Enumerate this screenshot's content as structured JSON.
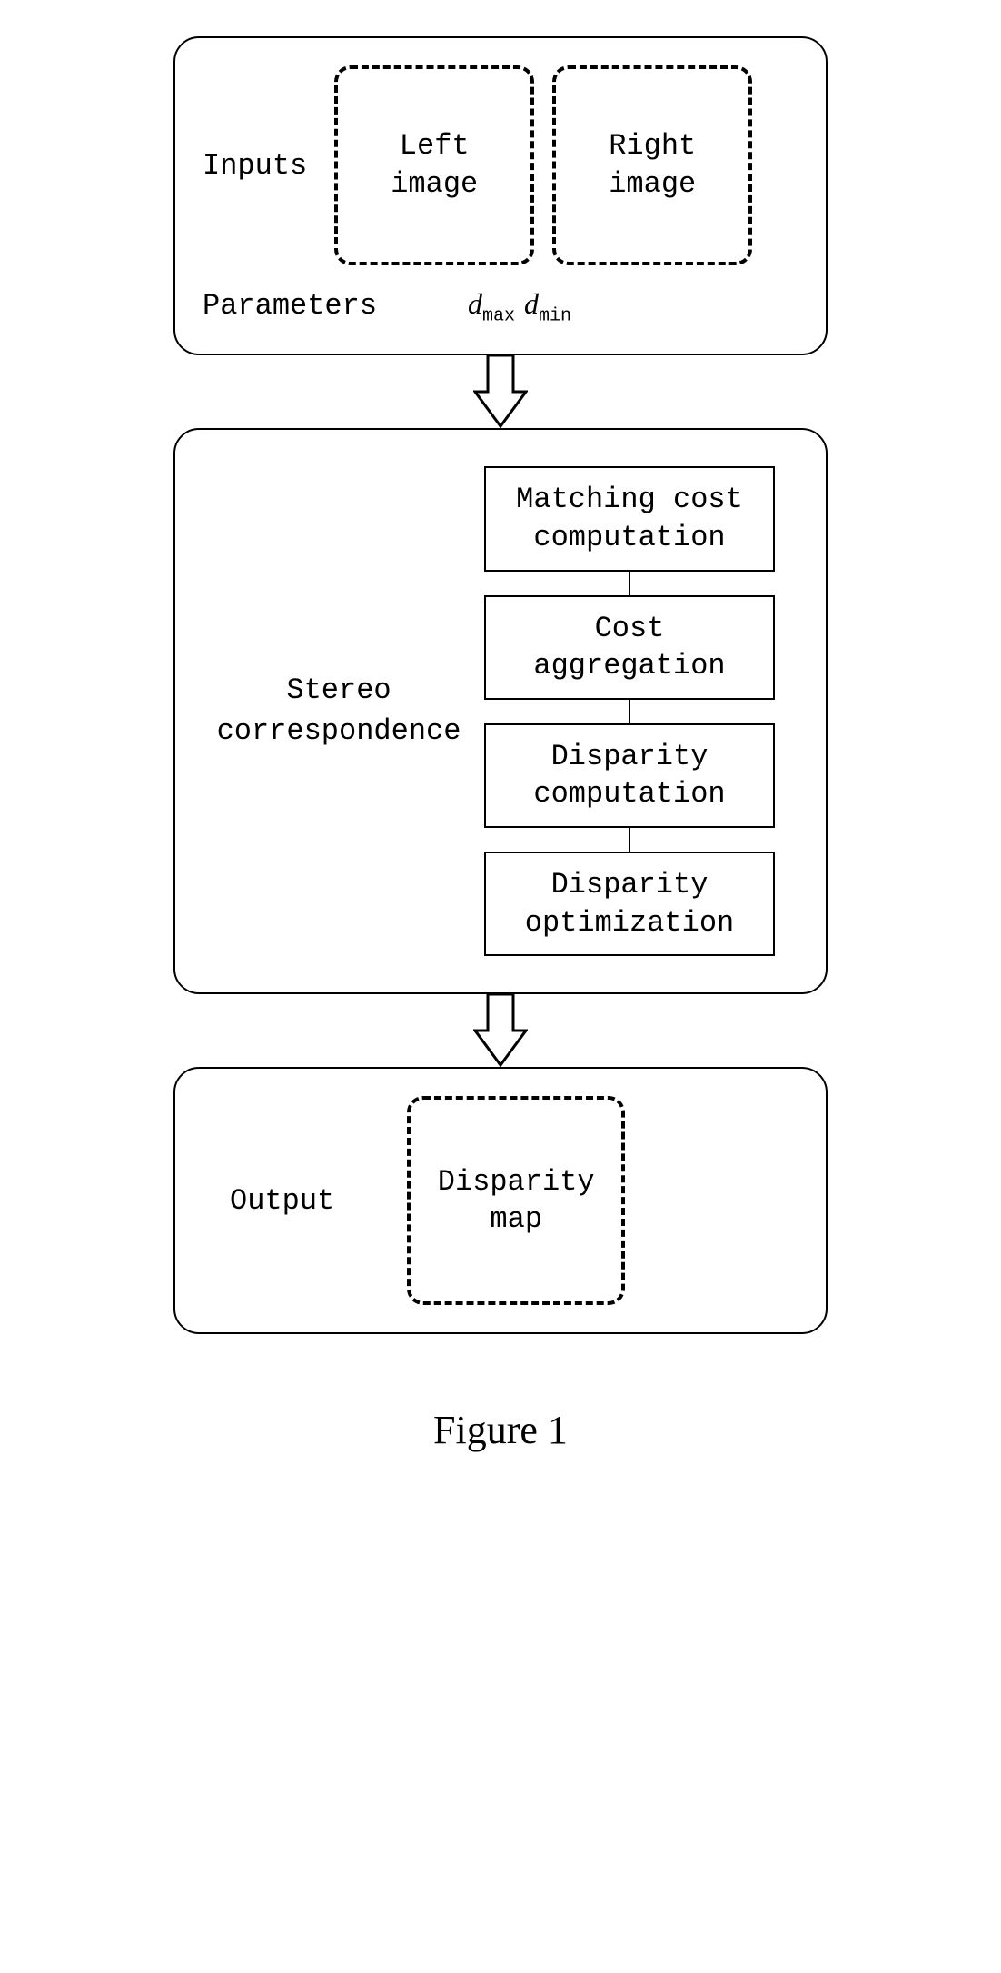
{
  "type": "flowchart",
  "background_color": "#ffffff",
  "stroke_color": "#000000",
  "font_family_mono": "Courier New",
  "font_family_serif": "Times New Roman",
  "label_fontsize": 32,
  "caption_fontsize": 44,
  "stage_border_radius": 28,
  "dashed_box_border_radius": 18,
  "stage_width": 720,
  "stages": {
    "inputs": {
      "label": "Inputs",
      "left_image": "Left\nimage",
      "right_image": "Right\nimage",
      "params_label": "Parameters",
      "param_dmax_var": "d",
      "param_dmax_sub": "max",
      "param_dmin_var": "d",
      "param_dmin_sub": "min"
    },
    "stereo": {
      "label": "Stereo\ncorrespondence",
      "steps": [
        "Matching cost\ncomputation",
        "Cost\naggregation",
        "Disparity\ncomputation",
        "Disparity\noptimization"
      ]
    },
    "output": {
      "label": "Output",
      "box": "Disparity\nmap"
    }
  },
  "caption": "Figure 1",
  "arrow": {
    "width": 60,
    "height": 80,
    "shaft_width": 28,
    "head_width": 56,
    "fill": "#ffffff",
    "stroke": "#000000",
    "stroke_width": 3
  }
}
